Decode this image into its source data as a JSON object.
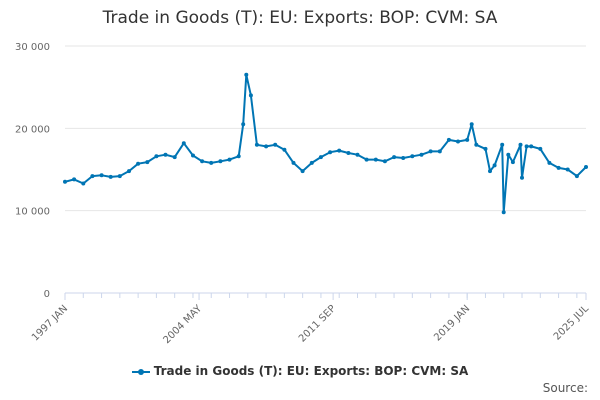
{
  "chart_data": {
    "type": "line",
    "title": "Trade in Goods (T): EU: Exports: BOP: CVM: SA",
    "xlabel": "",
    "ylabel": "",
    "x_range": [
      "1997 JAN",
      "2025 JUL"
    ],
    "x_ticks": [
      "1997 JAN",
      "2004 MAY",
      "2011 SEP",
      "2019 JAN",
      "2025 JUL"
    ],
    "y_ticks": [
      "0",
      "10 000",
      "20 000",
      "30 000"
    ],
    "ylim": [
      0,
      30000
    ],
    "grid": true,
    "legend_position": "bottom",
    "series_color": "#0075b4",
    "series": [
      {
        "name": "Trade in Goods (T): EU: Exports: BOP: CVM: SA",
        "points": [
          [
            "1997 JAN",
            13500
          ],
          [
            "1997 JUL",
            13800
          ],
          [
            "1998 JAN",
            13300
          ],
          [
            "1998 JUL",
            14200
          ],
          [
            "1999 JAN",
            14300
          ],
          [
            "1999 JUL",
            14100
          ],
          [
            "2000 JAN",
            14200
          ],
          [
            "2000 JUL",
            14800
          ],
          [
            "2001 JAN",
            15700
          ],
          [
            "2001 JUL",
            15900
          ],
          [
            "2002 JAN",
            16600
          ],
          [
            "2002 JUL",
            16800
          ],
          [
            "2003 JAN",
            16500
          ],
          [
            "2003 JUL",
            18200
          ],
          [
            "2004 JAN",
            16700
          ],
          [
            "2004 JUL",
            16000
          ],
          [
            "2005 JAN",
            15800
          ],
          [
            "2005 JUL",
            16000
          ],
          [
            "2006 JAN",
            16200
          ],
          [
            "2006 JUL",
            16600
          ],
          [
            "2006 OCT",
            20500
          ],
          [
            "2006 DEC",
            26500
          ],
          [
            "2007 MAR",
            24000
          ],
          [
            "2007 JUL",
            18000
          ],
          [
            "2008 JAN",
            17800
          ],
          [
            "2008 JUL",
            18000
          ],
          [
            "2009 JAN",
            17400
          ],
          [
            "2009 JUL",
            15800
          ],
          [
            "2010 JAN",
            14800
          ],
          [
            "2010 JUL",
            15800
          ],
          [
            "2011 JAN",
            16500
          ],
          [
            "2011 JUL",
            17100
          ],
          [
            "2012 JAN",
            17300
          ],
          [
            "2012 JUL",
            17000
          ],
          [
            "2013 JAN",
            16800
          ],
          [
            "2013 JUL",
            16200
          ],
          [
            "2014 JAN",
            16200
          ],
          [
            "2014 JUL",
            16000
          ],
          [
            "2015 JAN",
            16500
          ],
          [
            "2015 JUL",
            16400
          ],
          [
            "2016 JAN",
            16600
          ],
          [
            "2016 JUL",
            16800
          ],
          [
            "2017 JAN",
            17200
          ],
          [
            "2017 JUL",
            17200
          ],
          [
            "2018 JAN",
            18600
          ],
          [
            "2018 JUL",
            18400
          ],
          [
            "2019 JAN",
            18600
          ],
          [
            "2019 APR",
            20500
          ],
          [
            "2019 JUL",
            18000
          ],
          [
            "2020 JAN",
            17500
          ],
          [
            "2020 APR",
            14800
          ],
          [
            "2020 JUL",
            15500
          ],
          [
            "2020 DEC",
            18000
          ],
          [
            "2021 JAN",
            9800
          ],
          [
            "2021 APR",
            16800
          ],
          [
            "2021 JUL",
            15900
          ],
          [
            "2021 DEC",
            18000
          ],
          [
            "2022 JAN",
            14000
          ],
          [
            "2022 APR",
            17800
          ],
          [
            "2022 JUL",
            17800
          ],
          [
            "2023 JAN",
            17500
          ],
          [
            "2023 JUL",
            15800
          ],
          [
            "2024 JAN",
            15200
          ],
          [
            "2024 JUL",
            15000
          ],
          [
            "2025 JAN",
            14200
          ],
          [
            "2025 JUL",
            15300
          ]
        ]
      }
    ],
    "credits": "Source:"
  }
}
